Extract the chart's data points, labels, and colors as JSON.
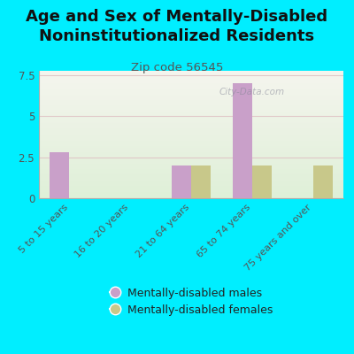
{
  "title": "Age and Sex of Mentally-Disabled\nNoninstitutionalized Residents",
  "subtitle": "Zip code 56545",
  "categories": [
    "5 to 15 years",
    "16 to 20 years",
    "21 to 64 years",
    "65 to 74 years",
    "75 years and over"
  ],
  "males": [
    2.8,
    0,
    2.0,
    7.0,
    0
  ],
  "females": [
    0,
    0,
    2.0,
    2.0,
    2.0
  ],
  "male_color": "#c9a0c9",
  "female_color": "#c8c88a",
  "background_color": "#00eeff",
  "plot_bg_top": "#f5f5ee",
  "plot_bg_bottom": "#dff0d8",
  "grid_color": "#e0c8c8",
  "ylim": [
    0,
    7.75
  ],
  "yticks": [
    0,
    2.5,
    5,
    7.5
  ],
  "bar_width": 0.32,
  "title_fontsize": 13,
  "subtitle_fontsize": 9.5,
  "tick_fontsize": 8.5,
  "xtick_fontsize": 8,
  "legend_label_males": "Mentally-disabled males",
  "legend_label_females": "Mentally-disabled females",
  "watermark": "City-Data.com"
}
